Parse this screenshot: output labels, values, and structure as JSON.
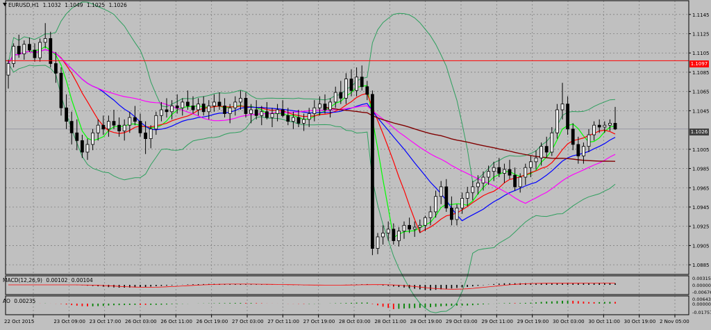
{
  "header": {
    "symbol": "EURUSD,H1",
    "ohlc": [
      "1.1032",
      "1.1049",
      "1.1025",
      "1.1026"
    ]
  },
  "colors": {
    "background": "#c0c0c0",
    "grid": "#808080",
    "bull_candle": "#f0f0f0",
    "bear_candle": "#000000",
    "ma_fast": "#00ff00",
    "ma_medium": "#ff0000",
    "ma_slow": "#0000ff",
    "ma_magenta": "#ff00ff",
    "ma_long": "#800000",
    "bollinger": "#2e9f5e",
    "horizontal_line": "#ff0000",
    "bid_tag": "#404040",
    "hline_tag": "#ff0000"
  },
  "price_axis": {
    "labels": [
      "1.1145",
      "1.1125",
      "1.1105",
      "1.1085",
      "1.1065",
      "1.1045",
      "1.1005",
      "1.0985",
      "1.0965",
      "1.0945",
      "1.0925",
      "1.0905",
      "1.0885"
    ],
    "horizontal_line_price": "1.1097",
    "current_price": "1.1026"
  },
  "time_axis": {
    "labels": [
      "22 Oct 2015",
      "23 Oct 09:00",
      "23 Oct 17:00",
      "26 Oct 03:00",
      "26 Oct 11:00",
      "26 Oct 19:00",
      "27 Oct 03:00",
      "27 Oct 11:00",
      "27 Oct 19:00",
      "28 Oct 03:00",
      "28 Oct 11:00",
      "28 Oct 19:00",
      "29 Oct 03:00",
      "29 Oct 11:00",
      "29 Oct 19:00",
      "30 Oct 03:00",
      "30 Oct 11:00",
      "30 Oct 19:00",
      "2 Nov 05:00"
    ]
  },
  "macd_panel": {
    "label_parts": [
      "MACD(12,26,9)",
      "0.00102",
      "0.00104"
    ],
    "axis_labels": [
      "0.00315",
      "0.00000",
      "-0.00676"
    ]
  },
  "ao_panel": {
    "label_parts": [
      "AO",
      "0.00235"
    ],
    "axis_labels": [
      "0.00643",
      "0.00000",
      "-0.01757"
    ]
  },
  "chart_data": {
    "type": "candlestick",
    "symbol": "EURUSD",
    "timeframe": "H1",
    "ylim": [
      1.0875,
      1.116
    ],
    "overlays": [
      "bollinger-bands",
      "moving-averages",
      "horizontal-line 1.1097"
    ],
    "candles": [
      [
        1.1082,
        1.1098,
        1.1068,
        1.1094
      ],
      [
        1.1094,
        1.1115,
        1.109,
        1.1112
      ],
      [
        1.1112,
        1.1124,
        1.11,
        1.1104
      ],
      [
        1.1104,
        1.1118,
        1.1098,
        1.1114
      ],
      [
        1.1114,
        1.1121,
        1.1106,
        1.1108
      ],
      [
        1.1108,
        1.1115,
        1.1096,
        1.11
      ],
      [
        1.11,
        1.112,
        1.1096,
        1.1116
      ],
      [
        1.1116,
        1.1136,
        1.111,
        1.112
      ],
      [
        1.112,
        1.1127,
        1.109,
        1.1094
      ],
      [
        1.1094,
        1.1106,
        1.1074,
        1.1084
      ],
      [
        1.1084,
        1.109,
        1.104,
        1.1048
      ],
      [
        1.1048,
        1.1062,
        1.1026,
        1.1034
      ],
      [
        1.1034,
        1.1044,
        1.101,
        1.1022
      ],
      [
        1.1022,
        1.1036,
        1.1004,
        1.1014
      ],
      [
        1.1014,
        1.102,
        1.0996,
        1.1002
      ],
      [
        1.1002,
        1.1016,
        1.0994,
        1.101
      ],
      [
        1.101,
        1.1026,
        1.1004,
        1.1022
      ],
      [
        1.1022,
        1.1036,
        1.1014,
        1.103
      ],
      [
        1.103,
        1.104,
        1.102,
        1.1026
      ],
      [
        1.1026,
        1.104,
        1.1018,
        1.1034
      ],
      [
        1.1034,
        1.1046,
        1.1026,
        1.103
      ],
      [
        1.103,
        1.1038,
        1.1018,
        1.1024
      ],
      [
        1.1024,
        1.1036,
        1.1014,
        1.103
      ],
      [
        1.103,
        1.1044,
        1.1022,
        1.1038
      ],
      [
        1.1038,
        1.105,
        1.103,
        1.1034
      ],
      [
        1.1034,
        1.1042,
        1.1018,
        1.1022
      ],
      [
        1.1022,
        1.1034,
        1.1,
        1.1016
      ],
      [
        1.1016,
        1.103,
        1.1006,
        1.1026
      ],
      [
        1.1026,
        1.1044,
        1.102,
        1.104
      ],
      [
        1.104,
        1.1054,
        1.1034,
        1.1046
      ],
      [
        1.1046,
        1.1058,
        1.1038,
        1.1044
      ],
      [
        1.1044,
        1.1056,
        1.1036,
        1.105
      ],
      [
        1.105,
        1.1062,
        1.1042,
        1.1048
      ],
      [
        1.1048,
        1.1058,
        1.104,
        1.1054
      ],
      [
        1.1054,
        1.1066,
        1.1046,
        1.105
      ],
      [
        1.105,
        1.106,
        1.1042,
        1.1046
      ],
      [
        1.1046,
        1.1058,
        1.104,
        1.1052
      ],
      [
        1.1052,
        1.106,
        1.104,
        1.1044
      ],
      [
        1.1044,
        1.1056,
        1.1036,
        1.105
      ],
      [
        1.105,
        1.1062,
        1.1044,
        1.1054
      ],
      [
        1.1054,
        1.1064,
        1.1046,
        1.105
      ],
      [
        1.105,
        1.1058,
        1.1038,
        1.1042
      ],
      [
        1.1042,
        1.1052,
        1.1032,
        1.1048
      ],
      [
        1.1048,
        1.106,
        1.104,
        1.1054
      ],
      [
        1.1054,
        1.1066,
        1.1046,
        1.1058
      ],
      [
        1.1058,
        1.1064,
        1.1038,
        1.1042
      ],
      [
        1.1042,
        1.1052,
        1.1032,
        1.1046
      ],
      [
        1.1046,
        1.1056,
        1.1036,
        1.104
      ],
      [
        1.104,
        1.105,
        1.103,
        1.1044
      ],
      [
        1.1044,
        1.1054,
        1.1036,
        1.1038
      ],
      [
        1.1038,
        1.1048,
        1.1028,
        1.1042
      ],
      [
        1.1042,
        1.1052,
        1.1034,
        1.1046
      ],
      [
        1.1046,
        1.1056,
        1.1038,
        1.104
      ],
      [
        1.104,
        1.1048,
        1.103,
        1.1034
      ],
      [
        1.1034,
        1.1044,
        1.1026,
        1.1038
      ],
      [
        1.1038,
        1.1046,
        1.1028,
        1.1032
      ],
      [
        1.1032,
        1.1042,
        1.1024,
        1.1036
      ],
      [
        1.1036,
        1.1048,
        1.1028,
        1.1042
      ],
      [
        1.1042,
        1.1056,
        1.1034,
        1.1048
      ],
      [
        1.1048,
        1.106,
        1.104,
        1.1052
      ],
      [
        1.1052,
        1.1062,
        1.1042,
        1.1046
      ],
      [
        1.1046,
        1.1058,
        1.1038,
        1.1054
      ],
      [
        1.1054,
        1.107,
        1.1048,
        1.1064
      ],
      [
        1.1064,
        1.1076,
        1.1052,
        1.1058
      ],
      [
        1.1058,
        1.1084,
        1.1052,
        1.1078
      ],
      [
        1.1078,
        1.1088,
        1.106,
        1.1066
      ],
      [
        1.1066,
        1.109,
        1.106,
        1.108
      ],
      [
        1.108,
        1.1092,
        1.1066,
        1.107
      ],
      [
        1.107,
        1.1076,
        1.1056,
        1.1062
      ],
      [
        1.1062,
        1.1066,
        1.0895,
        1.0902
      ],
      [
        1.0902,
        1.0918,
        1.0896,
        1.0914
      ],
      [
        1.0914,
        1.0926,
        1.0906,
        1.0918
      ],
      [
        1.0918,
        1.093,
        1.091,
        1.0922
      ],
      [
        1.0922,
        1.0928,
        1.0906,
        1.091
      ],
      [
        1.091,
        1.0924,
        1.0904,
        1.092
      ],
      [
        1.092,
        1.093,
        1.0912,
        1.0926
      ],
      [
        1.0926,
        1.0934,
        1.0918,
        1.0922
      ],
      [
        1.0922,
        1.093,
        1.0914,
        1.0924
      ],
      [
        1.0924,
        1.0932,
        1.0918,
        1.0926
      ],
      [
        1.0926,
        1.0936,
        1.092,
        1.0934
      ],
      [
        1.0934,
        1.0946,
        1.0926,
        1.094
      ],
      [
        1.094,
        1.0962,
        1.0934,
        1.0956
      ],
      [
        1.0956,
        1.0972,
        1.0948,
        1.0966
      ],
      [
        1.0966,
        1.0974,
        1.094,
        1.0944
      ],
      [
        1.0944,
        1.0956,
        1.0926,
        1.0932
      ],
      [
        1.0932,
        1.0948,
        1.0926,
        1.0944
      ],
      [
        1.0944,
        1.096,
        1.0938,
        1.0954
      ],
      [
        1.0954,
        1.0966,
        1.0946,
        1.096
      ],
      [
        1.096,
        1.0972,
        1.0952,
        1.0966
      ],
      [
        1.0966,
        1.0978,
        1.0958,
        1.097
      ],
      [
        1.097,
        1.0982,
        1.0962,
        1.0976
      ],
      [
        1.0976,
        1.0988,
        1.0968,
        1.0982
      ],
      [
        1.0982,
        1.0992,
        1.0972,
        1.0986
      ],
      [
        1.0986,
        1.0996,
        1.0976,
        1.098
      ],
      [
        1.098,
        1.099,
        1.097,
        1.0984
      ],
      [
        1.0984,
        1.0994,
        1.0974,
        1.0978
      ],
      [
        1.0978,
        1.0986,
        1.0962,
        1.0966
      ],
      [
        1.0966,
        1.098,
        1.096,
        1.0976
      ],
      [
        1.0976,
        1.099,
        1.0968,
        1.0986
      ],
      [
        1.0986,
        1.0998,
        1.0976,
        1.0992
      ],
      [
        1.0992,
        1.1004,
        1.0984,
        1.0996
      ],
      [
        1.0996,
        1.1012,
        1.0988,
        1.1008
      ],
      [
        1.1008,
        1.1018,
        1.0996,
        1.1002
      ],
      [
        1.1002,
        1.1028,
        1.0998,
        1.1022
      ],
      [
        1.1022,
        1.1052,
        1.1016,
        1.1046
      ],
      [
        1.1046,
        1.1074,
        1.1036,
        1.1052
      ],
      [
        1.1052,
        1.106,
        1.102,
        1.1026
      ],
      [
        1.1026,
        1.1032,
        1.1004,
        1.101
      ],
      [
        1.101,
        1.1018,
        1.099,
        1.0998
      ],
      [
        1.0998,
        1.1012,
        1.099,
        1.1008
      ],
      [
        1.1008,
        1.1026,
        1.1002,
        1.102
      ],
      [
        1.102,
        1.1034,
        1.1014,
        1.103
      ],
      [
        1.103,
        1.1036,
        1.1022,
        1.1028
      ],
      [
        1.1028,
        1.1034,
        1.1022,
        1.103
      ],
      [
        1.103,
        1.1036,
        1.1024,
        1.1032
      ],
      [
        1.1032,
        1.1049,
        1.1025,
        1.1026
      ]
    ]
  }
}
